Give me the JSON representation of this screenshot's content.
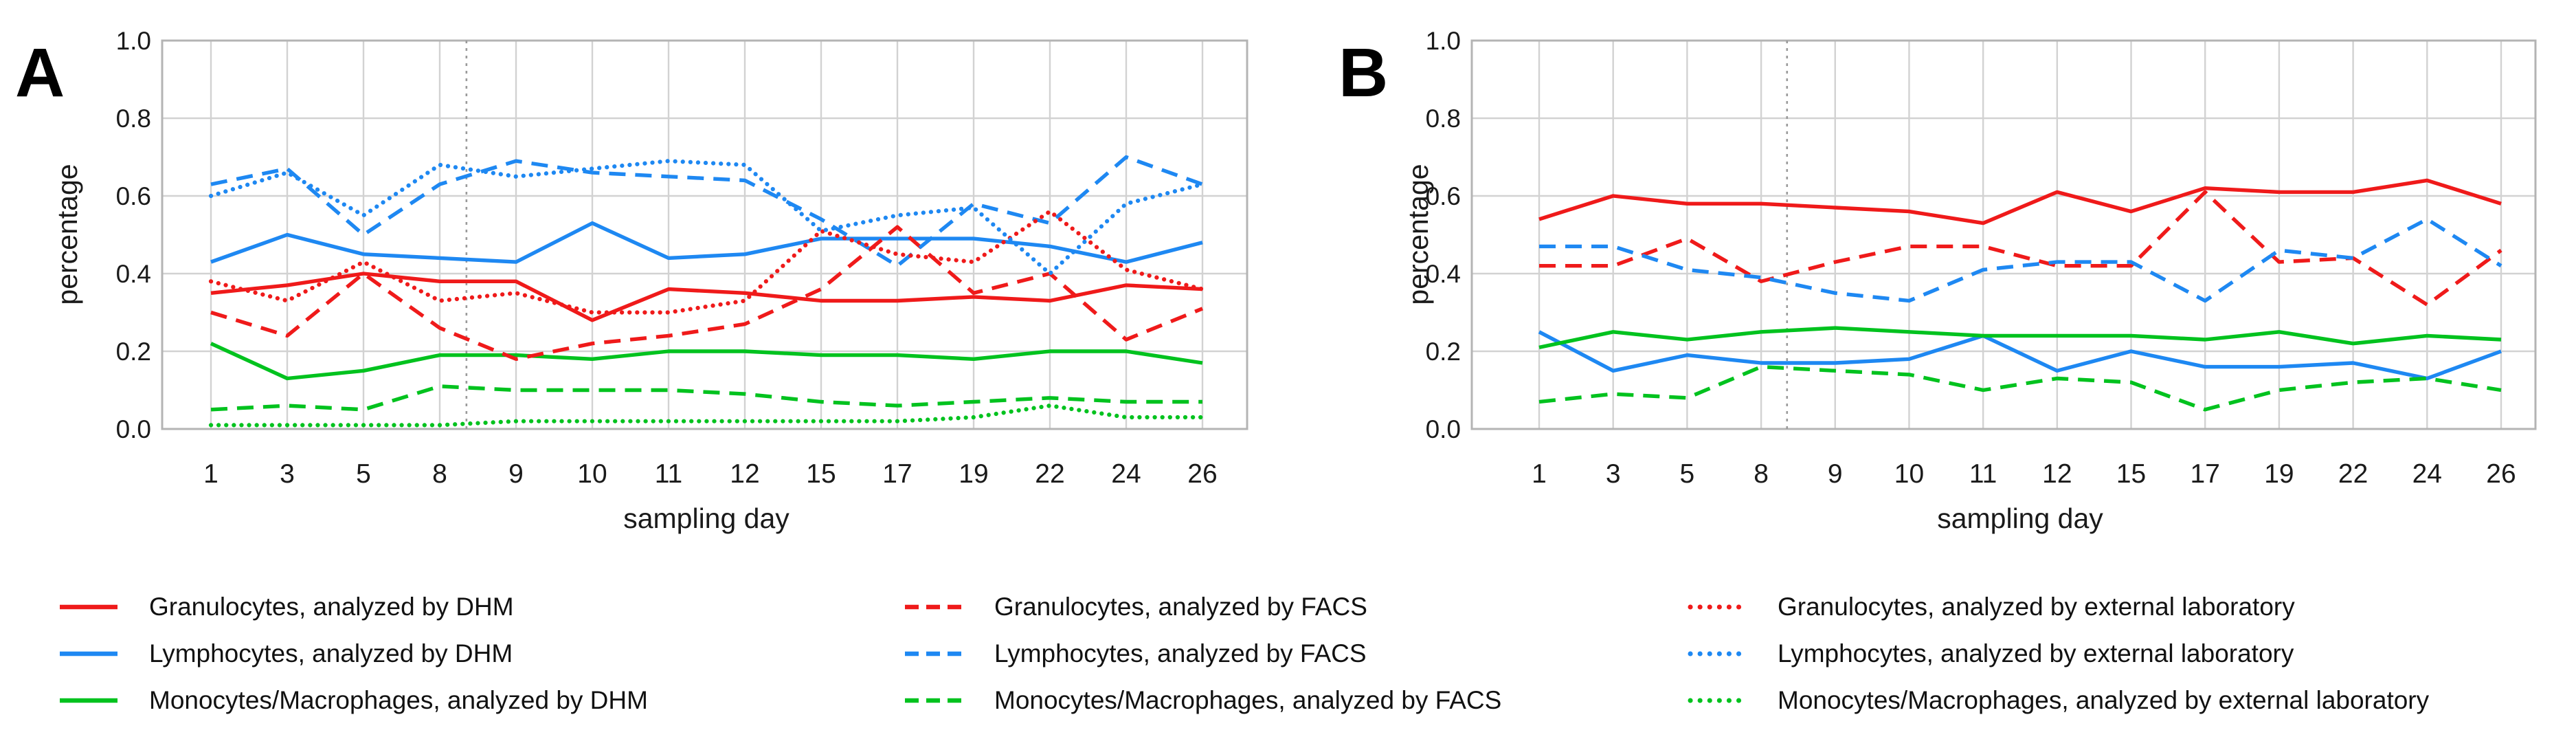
{
  "figure": {
    "background": "#ffffff",
    "colors": {
      "granulocytes": "#ef1a1a",
      "lymphocytes": "#1e88f2",
      "monocytes": "#00c21e",
      "grid": "#d2d2d2",
      "axis_border": "#b4b4b4",
      "day_marker": "#9a9a9a",
      "text": "#1a1a1a"
    },
    "panels": [
      {
        "letter": "A"
      },
      {
        "letter": "B"
      }
    ],
    "axis": {
      "ylabel": "percentage",
      "xlabel": "sampling day",
      "yticks": [
        "0.0",
        "0.2",
        "0.4",
        "0.6",
        "0.8",
        "1.0"
      ],
      "xticks": [
        "1",
        "3",
        "5",
        "8",
        "9",
        "10",
        "11",
        "12",
        "15",
        "17",
        "19",
        "22",
        "24",
        "26"
      ]
    }
  },
  "chart_data": [
    {
      "type": "line",
      "panel": "A",
      "xlabel": "sampling day",
      "ylabel": "percentage",
      "x": [
        1,
        3,
        5,
        8,
        9,
        10,
        11,
        12,
        15,
        17,
        19,
        22,
        24,
        26
      ],
      "ylim": [
        0.0,
        1.0
      ],
      "yticks": [
        0.0,
        0.2,
        0.4,
        0.6,
        0.8,
        1.0
      ],
      "grid": true,
      "vline_between_days": [
        8,
        9
      ],
      "series": [
        {
          "label": "Granulocytes, analyzed by DHM",
          "color": "granulocytes",
          "style": "solid",
          "values": [
            0.35,
            0.37,
            0.4,
            0.38,
            0.38,
            0.28,
            0.36,
            0.35,
            0.33,
            0.33,
            0.34,
            0.33,
            0.37,
            0.36
          ]
        },
        {
          "label": "Lymphocytes, analyzed by DHM",
          "color": "lymphocytes",
          "style": "solid",
          "values": [
            0.43,
            0.5,
            0.45,
            0.44,
            0.43,
            0.53,
            0.44,
            0.45,
            0.49,
            0.49,
            0.49,
            0.47,
            0.43,
            0.48
          ]
        },
        {
          "label": "Monocytes/Macrophages, analyzed by DHM",
          "color": "monocytes",
          "style": "solid",
          "values": [
            0.22,
            0.13,
            0.15,
            0.19,
            0.19,
            0.18,
            0.2,
            0.2,
            0.19,
            0.19,
            0.18,
            0.2,
            0.2,
            0.17
          ]
        },
        {
          "label": "Granulocytes, analyzed by FACS",
          "color": "granulocytes",
          "style": "dashed",
          "values": [
            0.3,
            0.24,
            0.4,
            0.26,
            0.18,
            0.22,
            0.24,
            0.27,
            0.36,
            0.52,
            0.35,
            0.4,
            0.23,
            0.31
          ]
        },
        {
          "label": "Lymphocytes, analyzed by FACS",
          "color": "lymphocytes",
          "style": "dashed",
          "values": [
            0.63,
            0.67,
            0.5,
            0.63,
            0.69,
            0.66,
            0.65,
            0.64,
            0.54,
            0.42,
            0.58,
            0.53,
            0.7,
            0.63
          ]
        },
        {
          "label": "Monocytes/Macrophages, analyzed by FACS",
          "color": "monocytes",
          "style": "dashed",
          "values": [
            0.05,
            0.06,
            0.05,
            0.11,
            0.1,
            0.1,
            0.1,
            0.09,
            0.07,
            0.06,
            0.07,
            0.08,
            0.07,
            0.07
          ]
        },
        {
          "label": "Granulocytes, analyzed by external laboratory",
          "color": "granulocytes",
          "style": "dotted",
          "values": [
            0.38,
            0.33,
            0.43,
            0.33,
            0.35,
            0.3,
            0.3,
            0.33,
            0.51,
            0.45,
            0.43,
            0.56,
            0.41,
            0.36
          ]
        },
        {
          "label": "Lymphocytes, analyzed by external laboratory",
          "color": "lymphocytes",
          "style": "dotted",
          "values": [
            0.6,
            0.66,
            0.55,
            0.68,
            0.65,
            0.67,
            0.69,
            0.68,
            0.51,
            0.55,
            0.57,
            0.4,
            0.58,
            0.63
          ]
        },
        {
          "label": "Monocytes/Macrophages, analyzed by external laboratory",
          "color": "monocytes",
          "style": "dotted",
          "values": [
            0.01,
            0.01,
            0.01,
            0.01,
            0.02,
            0.02,
            0.02,
            0.02,
            0.02,
            0.02,
            0.03,
            0.06,
            0.03,
            0.03
          ]
        }
      ]
    },
    {
      "type": "line",
      "panel": "B",
      "xlabel": "sampling day",
      "ylabel": "percentage",
      "x": [
        1,
        3,
        5,
        8,
        9,
        10,
        11,
        12,
        15,
        17,
        19,
        22,
        24,
        26
      ],
      "ylim": [
        0.0,
        1.0
      ],
      "yticks": [
        0.0,
        0.2,
        0.4,
        0.6,
        0.8,
        1.0
      ],
      "grid": true,
      "vline_between_days": [
        8,
        9
      ],
      "series": [
        {
          "label": "Granulocytes, analyzed by DHM",
          "color": "granulocytes",
          "style": "solid",
          "values": [
            0.54,
            0.6,
            0.58,
            0.58,
            0.57,
            0.56,
            0.53,
            0.61,
            0.56,
            0.62,
            0.61,
            0.61,
            0.64,
            0.58
          ]
        },
        {
          "label": "Lymphocytes, analyzed by DHM",
          "color": "lymphocytes",
          "style": "solid",
          "values": [
            0.25,
            0.15,
            0.19,
            0.17,
            0.17,
            0.18,
            0.24,
            0.15,
            0.2,
            0.16,
            0.16,
            0.17,
            0.13,
            0.2
          ]
        },
        {
          "label": "Monocytes/Macrophages, analyzed by DHM",
          "color": "monocytes",
          "style": "solid",
          "values": [
            0.21,
            0.25,
            0.23,
            0.25,
            0.26,
            0.25,
            0.24,
            0.24,
            0.24,
            0.23,
            0.25,
            0.22,
            0.24,
            0.23
          ]
        },
        {
          "label": "Granulocytes, analyzed by FACS",
          "color": "granulocytes",
          "style": "dashed",
          "values": [
            0.42,
            0.42,
            0.49,
            0.38,
            0.43,
            0.47,
            0.47,
            0.42,
            0.42,
            0.61,
            0.43,
            0.44,
            0.32,
            0.46
          ]
        },
        {
          "label": "Lymphocytes, analyzed by FACS",
          "color": "lymphocytes",
          "style": "dashed",
          "values": [
            0.47,
            0.47,
            0.41,
            0.39,
            0.35,
            0.33,
            0.41,
            0.43,
            0.43,
            0.33,
            0.46,
            0.44,
            0.54,
            0.42
          ]
        },
        {
          "label": "Monocytes/Macrophages, analyzed by FACS",
          "color": "monocytes",
          "style": "dashed",
          "values": [
            0.07,
            0.09,
            0.08,
            0.16,
            0.15,
            0.14,
            0.1,
            0.13,
            0.12,
            0.05,
            0.1,
            0.12,
            0.13,
            0.1
          ]
        }
      ]
    }
  ],
  "legend": {
    "columns": [
      {
        "entries": [
          {
            "label": "Granulocytes, analyzed by DHM",
            "color": "granulocytes",
            "style": "solid"
          },
          {
            "label": "Lymphocytes, analyzed by DHM",
            "color": "lymphocytes",
            "style": "solid"
          },
          {
            "label": "Monocytes/Macrophages, analyzed by DHM",
            "color": "monocytes",
            "style": "solid"
          }
        ]
      },
      {
        "entries": [
          {
            "label": "Granulocytes, analyzed by FACS",
            "color": "granulocytes",
            "style": "dashed"
          },
          {
            "label": "Lymphocytes, analyzed by FACS",
            "color": "lymphocytes",
            "style": "dashed"
          },
          {
            "label": "Monocytes/Macrophages, analyzed by FACS",
            "color": "monocytes",
            "style": "dashed"
          }
        ]
      },
      {
        "entries": [
          {
            "label": "Granulocytes, analyzed by external laboratory",
            "color": "granulocytes",
            "style": "dotted"
          },
          {
            "label": "Lymphocytes, analyzed by external laboratory",
            "color": "lymphocytes",
            "style": "dotted"
          },
          {
            "label": "Monocytes/Macrophages, analyzed by external laboratory",
            "color": "monocytes",
            "style": "dotted"
          }
        ]
      }
    ]
  }
}
